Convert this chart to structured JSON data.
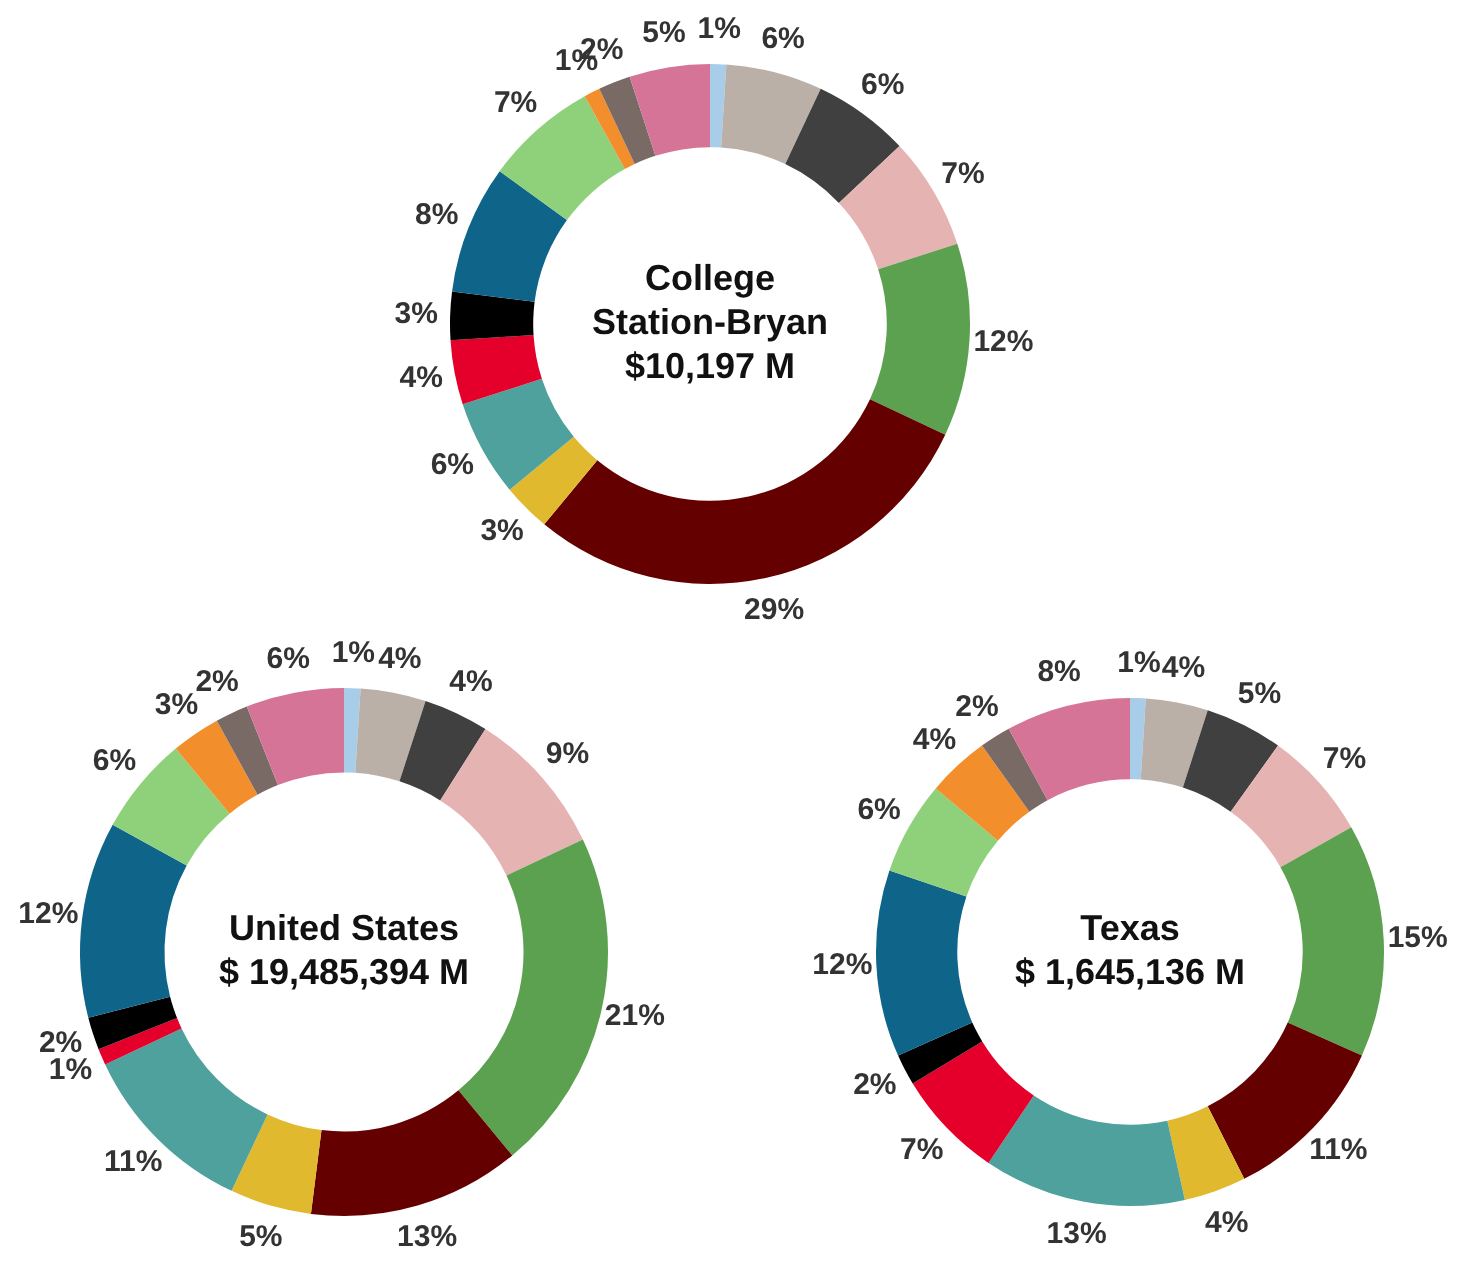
{
  "chart_data": [
    {
      "type": "donut",
      "title": "College Station-Bryan",
      "subtitle": "$10,197 M",
      "categories": [
        null,
        null,
        null,
        null,
        null,
        null,
        null,
        null,
        null,
        null,
        null,
        null,
        null,
        null,
        null
      ],
      "values": [
        1,
        6,
        6,
        7,
        12,
        29,
        3,
        6,
        4,
        3,
        8,
        7,
        1,
        2,
        5
      ],
      "value_labels": [
        "1%",
        "6%",
        "6%",
        "7%",
        "12%",
        "29%",
        "3%",
        "6%",
        "4%",
        "3%",
        "8%",
        "7%",
        "1%",
        "2%",
        "5%"
      ],
      "colors": [
        "#a7cde8",
        "#bab0a8",
        "#404040",
        "#e6b3b3",
        "#5ba150",
        "#650000",
        "#e0b92e",
        "#4ea19d",
        "#e4002b",
        "#000000",
        "#0e6589",
        "#8fd17a",
        "#f28f2c",
        "#7a6a66",
        "#d57497"
      ]
    },
    {
      "type": "donut",
      "title": "United States",
      "subtitle": "$ 19,485,394 M",
      "categories": [
        null,
        null,
        null,
        null,
        null,
        null,
        null,
        null,
        null,
        null,
        null,
        null,
        null,
        null,
        null
      ],
      "values": [
        1,
        4,
        4,
        9,
        21,
        13,
        5,
        11,
        1,
        2,
        12,
        6,
        3,
        2,
        6
      ],
      "value_labels": [
        "1%",
        "4%",
        "4%",
        "9%",
        "21%",
        "13%",
        "5%",
        "11%",
        "1%",
        "2%",
        "12%",
        "6%",
        "3%",
        "2%",
        "6%"
      ],
      "colors": [
        "#a7cde8",
        "#bab0a8",
        "#404040",
        "#e6b3b3",
        "#5ba150",
        "#650000",
        "#e0b92e",
        "#4ea19d",
        "#e4002b",
        "#000000",
        "#0e6589",
        "#8fd17a",
        "#f28f2c",
        "#7a6a66",
        "#d57497"
      ]
    },
    {
      "type": "donut",
      "title": "Texas",
      "subtitle": "$ 1,645,136 M",
      "categories": [
        null,
        null,
        null,
        null,
        null,
        null,
        null,
        null,
        null,
        null,
        null,
        null,
        null,
        null,
        null
      ],
      "values": [
        1,
        4,
        5,
        7,
        15,
        11,
        4,
        13,
        7,
        2,
        12,
        6,
        4,
        2,
        8
      ],
      "value_labels": [
        "1%",
        "4%",
        "5%",
        "7%",
        "15%",
        "11%",
        "4%",
        "13%",
        "7%",
        "2%",
        "12%",
        "6%",
        "4%",
        "2%",
        "8%"
      ],
      "colors": [
        "#a7cde8",
        "#bab0a8",
        "#404040",
        "#e6b3b3",
        "#5ba150",
        "#650000",
        "#e0b92e",
        "#4ea19d",
        "#e4002b",
        "#000000",
        "#0e6589",
        "#8fd17a",
        "#f28f2c",
        "#7a6a66",
        "#d57497"
      ]
    }
  ]
}
